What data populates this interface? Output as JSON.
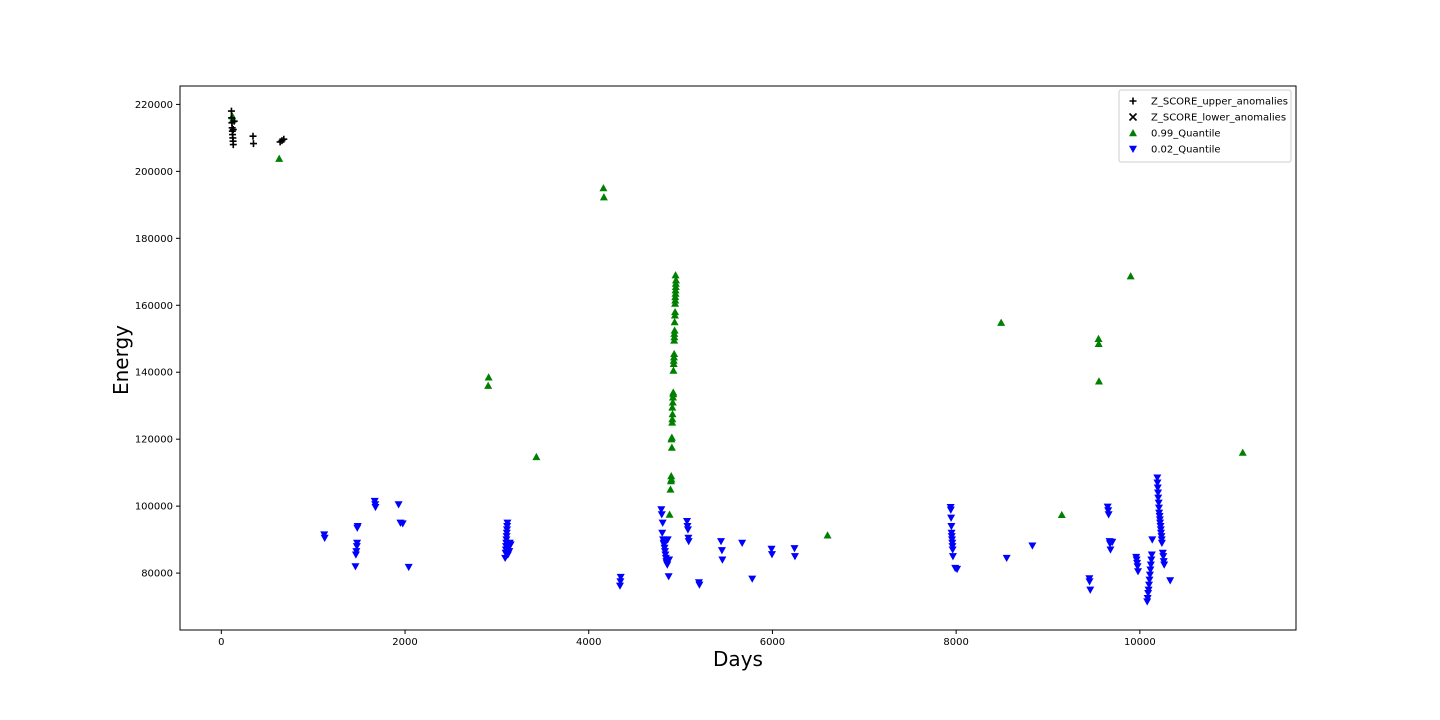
{
  "chart_data": {
    "type": "scatter",
    "title": "",
    "xlabel": "Days",
    "ylabel": "Energy",
    "xlim": [
      -450,
      11700
    ],
    "ylim": [
      63000,
      225500
    ],
    "xticks": [
      0,
      2000,
      4000,
      6000,
      8000,
      10000
    ],
    "yticks": [
      80000,
      100000,
      120000,
      140000,
      160000,
      180000,
      200000,
      220000
    ],
    "grid": false,
    "legend_position": "top-right",
    "series": [
      {
        "name": "Z_SCORE_upper_anomalies",
        "marker": "plus",
        "color": "#000000",
        "points": [
          [
            110,
            218000
          ],
          [
            112,
            216000
          ],
          [
            115,
            214500
          ],
          [
            118,
            213000
          ],
          [
            120,
            212000
          ],
          [
            122,
            211000
          ],
          [
            125,
            210000
          ],
          [
            128,
            209000
          ],
          [
            130,
            208000
          ],
          [
            140,
            215000
          ],
          [
            130,
            212500
          ],
          [
            345,
            210500
          ],
          [
            350,
            208300
          ],
          [
            640,
            208800
          ],
          [
            660,
            209200
          ],
          [
            680,
            209600
          ]
        ]
      },
      {
        "name": "Z_SCORE_lower_anomalies",
        "marker": "x",
        "color": "#000000",
        "points": []
      },
      {
        "name": "0.99_Quantile",
        "marker": "triangle-up",
        "color": "#008000",
        "points": [
          [
            120,
            216500
          ],
          [
            125,
            215500
          ],
          [
            630,
            203800
          ],
          [
            2910,
            138500
          ],
          [
            2905,
            136000
          ],
          [
            3430,
            114700
          ],
          [
            4160,
            195000
          ],
          [
            4165,
            192300
          ],
          [
            4880,
            97500
          ],
          [
            4890,
            105000
          ],
          [
            4895,
            107500
          ],
          [
            4898,
            109000
          ],
          [
            4900,
            108000
          ],
          [
            4905,
            117500
          ],
          [
            4900,
            120000
          ],
          [
            4905,
            120500
          ],
          [
            4908,
            125000
          ],
          [
            4910,
            126000
          ],
          [
            4912,
            127500
          ],
          [
            4910,
            129500
          ],
          [
            4915,
            131000
          ],
          [
            4917,
            132500
          ],
          [
            4920,
            133500
          ],
          [
            4920,
            134000
          ],
          [
            4922,
            140500
          ],
          [
            4925,
            142500
          ],
          [
            4925,
            143500
          ],
          [
            4928,
            144500
          ],
          [
            4930,
            145500
          ],
          [
            4930,
            149500
          ],
          [
            4932,
            150500
          ],
          [
            4932,
            151500
          ],
          [
            4935,
            152500
          ],
          [
            4935,
            155000
          ],
          [
            4938,
            157000
          ],
          [
            4940,
            158000
          ],
          [
            4940,
            160500
          ],
          [
            4942,
            161500
          ],
          [
            4942,
            162500
          ],
          [
            4945,
            163500
          ],
          [
            4945,
            164500
          ],
          [
            4948,
            165500
          ],
          [
            4948,
            166500
          ],
          [
            4950,
            167500
          ],
          [
            4945,
            169000
          ],
          [
            6600,
            91300
          ],
          [
            8490,
            154800
          ],
          [
            9150,
            97400
          ],
          [
            9550,
            150000
          ],
          [
            9552,
            148500
          ],
          [
            9555,
            137300
          ],
          [
            9900,
            168700
          ],
          [
            11120,
            116000
          ]
        ]
      },
      {
        "name": "0.02_Quantile",
        "marker": "triangle-down",
        "color": "#0000ff",
        "points": [
          [
            1120,
            91500
          ],
          [
            1125,
            90500
          ],
          [
            1460,
            82000
          ],
          [
            1465,
            85500
          ],
          [
            1470,
            86500
          ],
          [
            1475,
            88000
          ],
          [
            1478,
            89000
          ],
          [
            1480,
            93500
          ],
          [
            1485,
            94000
          ],
          [
            1670,
            101500
          ],
          [
            1675,
            100500
          ],
          [
            1678,
            99700
          ],
          [
            1930,
            100500
          ],
          [
            1950,
            95000
          ],
          [
            1975,
            94800
          ],
          [
            2040,
            81800
          ],
          [
            3090,
            84500
          ],
          [
            3095,
            86000
          ],
          [
            3098,
            87000
          ],
          [
            3100,
            88000
          ],
          [
            3102,
            89000
          ],
          [
            3104,
            90000
          ],
          [
            3106,
            91000
          ],
          [
            3108,
            92000
          ],
          [
            3110,
            93000
          ],
          [
            3112,
            94000
          ],
          [
            3115,
            95000
          ],
          [
            3120,
            85500
          ],
          [
            3125,
            87500
          ],
          [
            3130,
            88500
          ],
          [
            3135,
            86500
          ],
          [
            3140,
            89000
          ],
          [
            3150,
            88500
          ],
          [
            4340,
            76200
          ],
          [
            4345,
            77500
          ],
          [
            4348,
            78800
          ],
          [
            4790,
            99000
          ],
          [
            4795,
            97500
          ],
          [
            4800,
            92000
          ],
          [
            4805,
            95000
          ],
          [
            4810,
            90000
          ],
          [
            4815,
            89000
          ],
          [
            4820,
            88500
          ],
          [
            4825,
            87500
          ],
          [
            4830,
            86500
          ],
          [
            4835,
            85500
          ],
          [
            4840,
            84500
          ],
          [
            4845,
            83500
          ],
          [
            4850,
            83000
          ],
          [
            4855,
            82500
          ],
          [
            4860,
            90000
          ],
          [
            4870,
            79000
          ],
          [
            4875,
            84000
          ],
          [
            5070,
            95500
          ],
          [
            5075,
            94000
          ],
          [
            5080,
            93000
          ],
          [
            5085,
            90500
          ],
          [
            5088,
            89500
          ],
          [
            5200,
            77200
          ],
          [
            5205,
            76500
          ],
          [
            5440,
            89500
          ],
          [
            5450,
            86800
          ],
          [
            5455,
            84000
          ],
          [
            5670,
            89000
          ],
          [
            5780,
            78300
          ],
          [
            5990,
            87200
          ],
          [
            5995,
            85600
          ],
          [
            6240,
            87400
          ],
          [
            6245,
            85000
          ],
          [
            7940,
            99700
          ],
          [
            7942,
            98900
          ],
          [
            7945,
            96500
          ],
          [
            7948,
            94000
          ],
          [
            7950,
            92000
          ],
          [
            7952,
            91000
          ],
          [
            7955,
            90000
          ],
          [
            7958,
            89000
          ],
          [
            7960,
            88000
          ],
          [
            7962,
            87000
          ],
          [
            7965,
            85000
          ],
          [
            7990,
            81500
          ],
          [
            8010,
            81200
          ],
          [
            8550,
            84500
          ],
          [
            8830,
            88200
          ],
          [
            9450,
            78400
          ],
          [
            9452,
            77500
          ],
          [
            9460,
            75000
          ],
          [
            9650,
            99800
          ],
          [
            9655,
            98700
          ],
          [
            9660,
            97500
          ],
          [
            9670,
            89500
          ],
          [
            9675,
            88800
          ],
          [
            9680,
            87000
          ],
          [
            9700,
            89300
          ],
          [
            9960,
            84800
          ],
          [
            9965,
            84000
          ],
          [
            9970,
            83000
          ],
          [
            9975,
            82000
          ],
          [
            9980,
            80500
          ],
          [
            10080,
            71500
          ],
          [
            10085,
            72500
          ],
          [
            10090,
            74000
          ],
          [
            10095,
            75000
          ],
          [
            10100,
            76500
          ],
          [
            10105,
            78000
          ],
          [
            10110,
            79500
          ],
          [
            10115,
            81000
          ],
          [
            10120,
            82500
          ],
          [
            10125,
            84000
          ],
          [
            10130,
            85500
          ],
          [
            10135,
            90000
          ],
          [
            10190,
            108500
          ],
          [
            10192,
            107000
          ],
          [
            10195,
            105500
          ],
          [
            10198,
            104000
          ],
          [
            10200,
            102500
          ],
          [
            10205,
            101000
          ],
          [
            10208,
            99500
          ],
          [
            10210,
            98000
          ],
          [
            10215,
            97000
          ],
          [
            10218,
            96000
          ],
          [
            10220,
            95000
          ],
          [
            10225,
            94000
          ],
          [
            10228,
            93000
          ],
          [
            10230,
            92000
          ],
          [
            10235,
            91000
          ],
          [
            10238,
            90000
          ],
          [
            10240,
            89000
          ],
          [
            10250,
            86000
          ],
          [
            10255,
            85000
          ],
          [
            10260,
            83500
          ],
          [
            10265,
            82500
          ],
          [
            10330,
            77800
          ]
        ]
      }
    ]
  }
}
